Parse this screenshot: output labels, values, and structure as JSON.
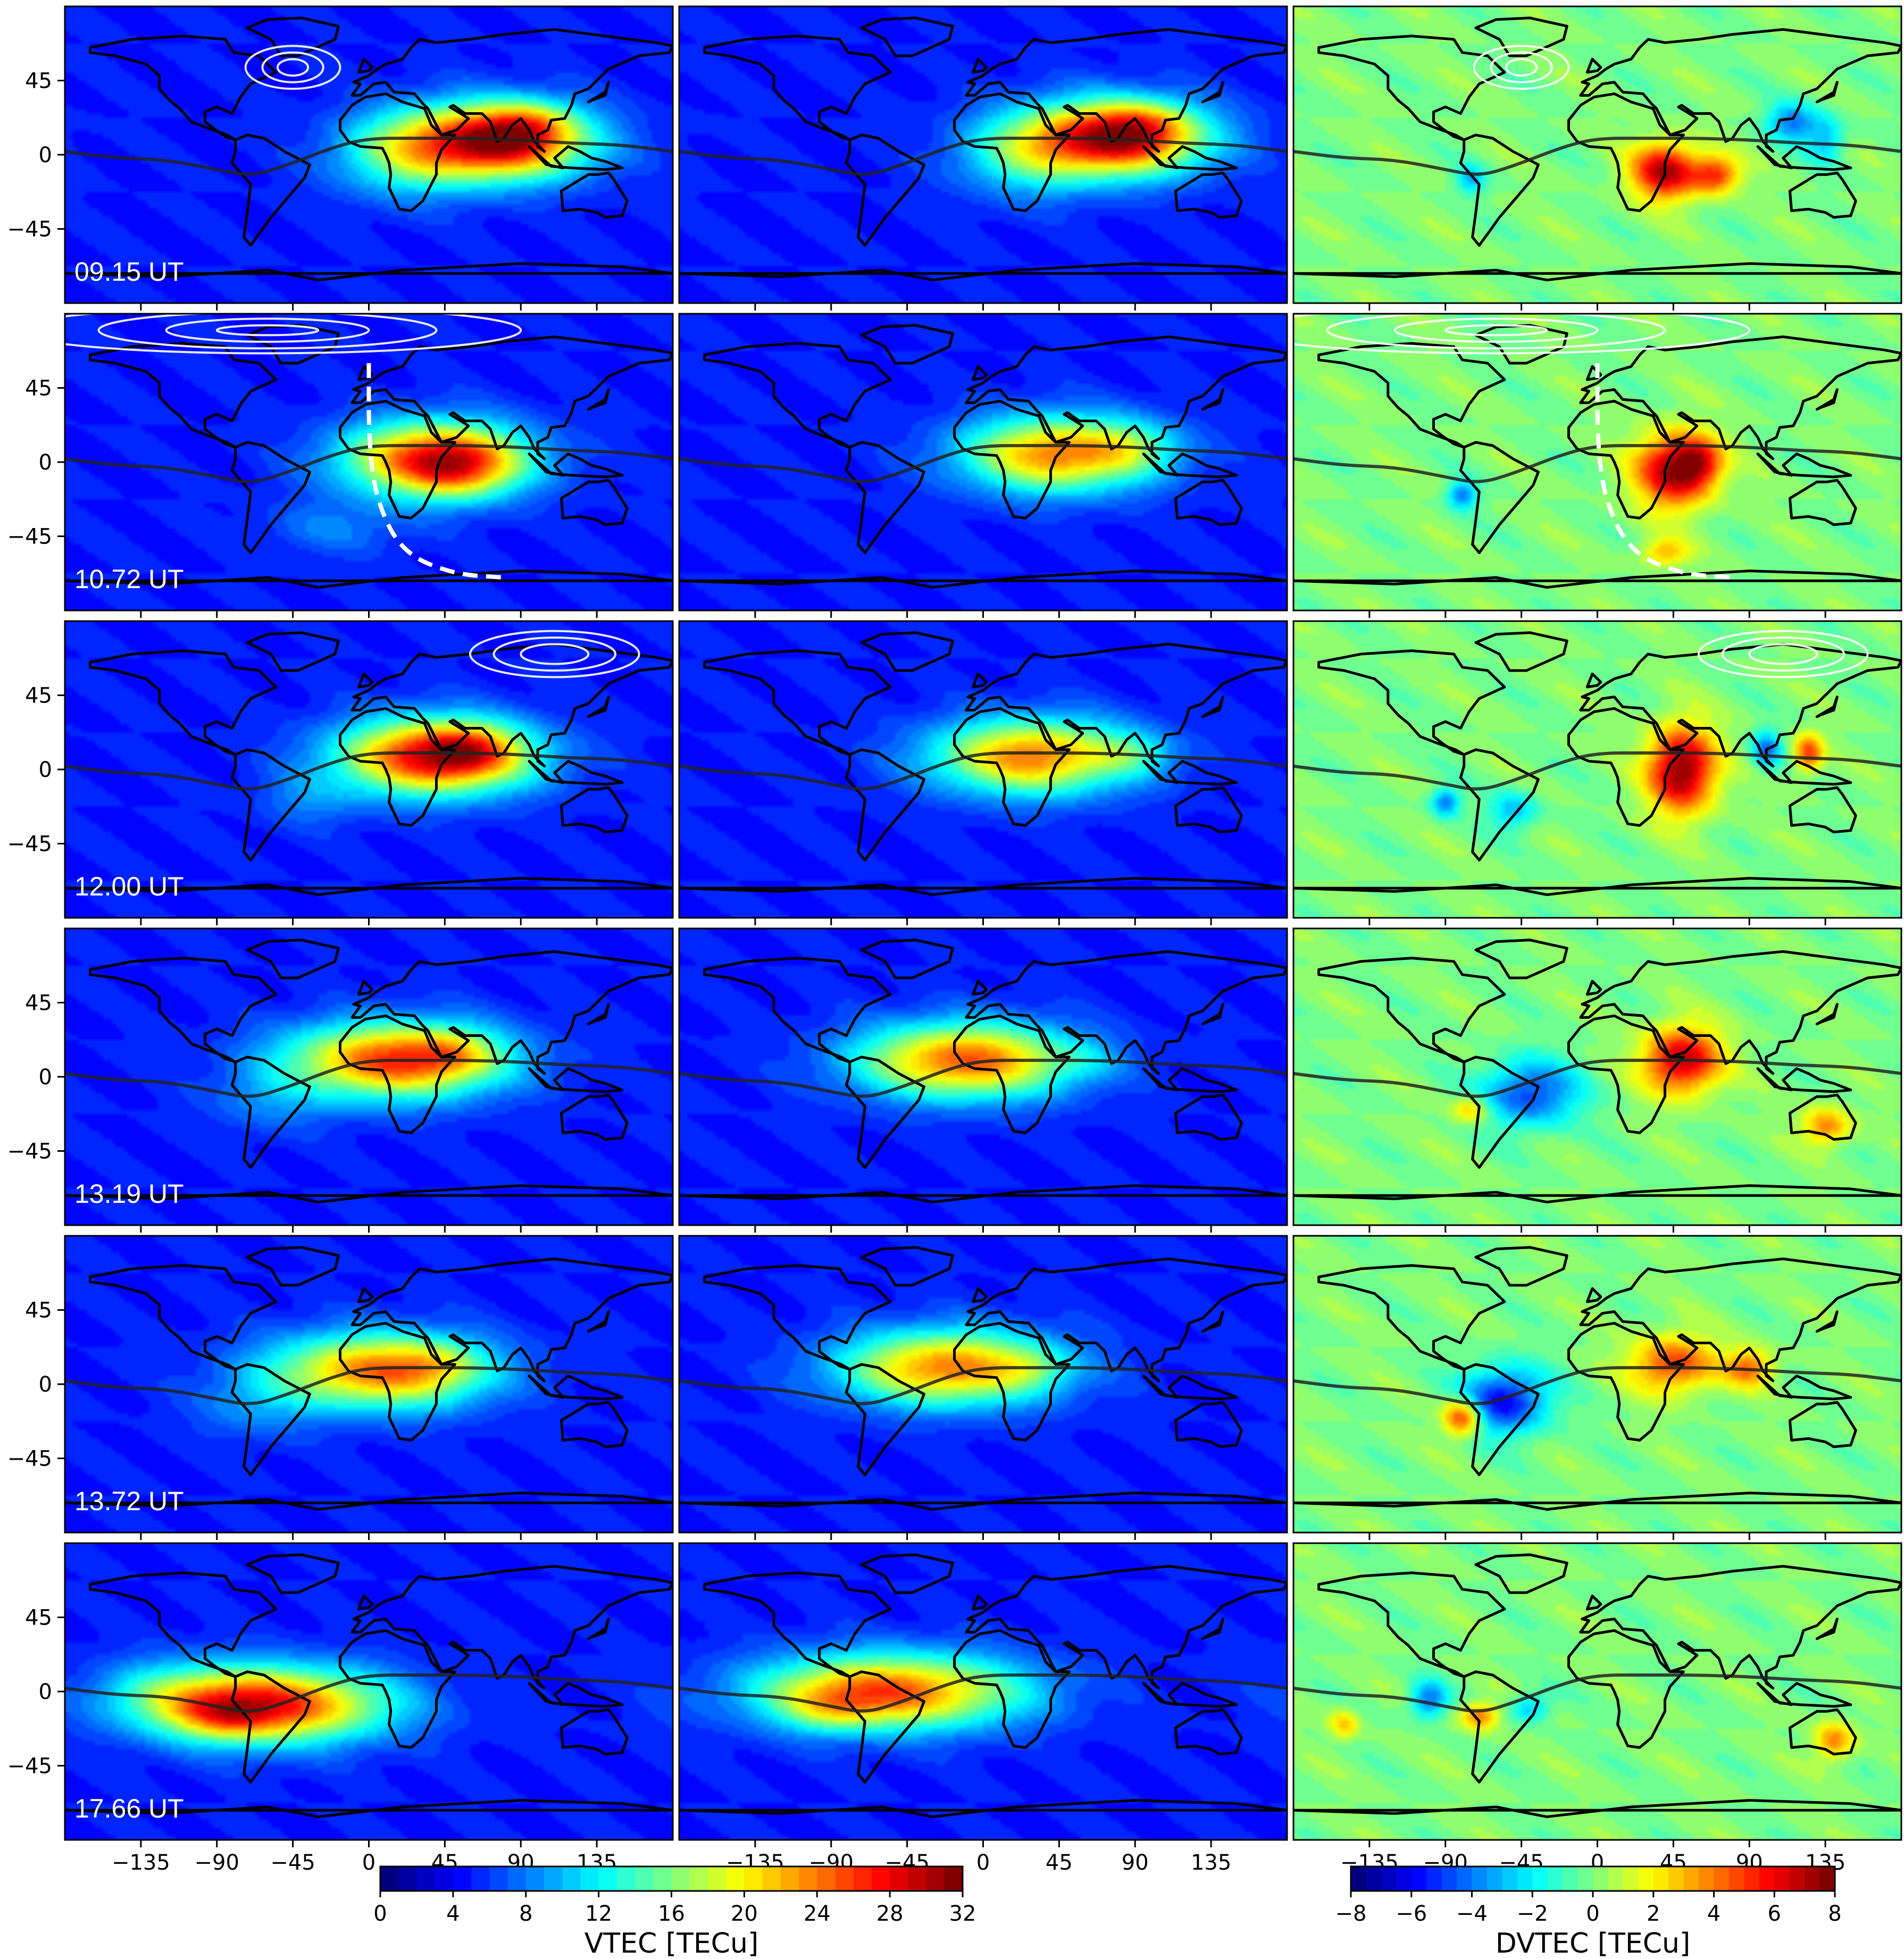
{
  "chart_data": {
    "type": "heatmap",
    "panel_grid": {
      "rows": 6,
      "cols": 3
    },
    "time_labels": [
      "09.15 UT",
      "10.72 UT",
      "12.00 UT",
      "13.19 UT",
      "13.72 UT",
      "17.66 UT"
    ],
    "lat_ticks": [
      45,
      0,
      -45
    ],
    "lat_tick_labels": [
      "45",
      "0",
      "−45"
    ],
    "lon_ticks": [
      -135,
      -90,
      -45,
      0,
      45,
      90,
      135
    ],
    "lon_tick_labels": [
      "−135",
      "−90",
      "−45",
      "0",
      "45",
      "90",
      "135"
    ],
    "xlim": [
      -180,
      180
    ],
    "ylim": [
      -90,
      90
    ],
    "columns": [
      {
        "quantity": "VTEC",
        "colorbar": "vtec"
      },
      {
        "quantity": "VTEC",
        "colorbar": "vtec"
      },
      {
        "quantity": "DVTEC",
        "colorbar": "dvtec"
      }
    ],
    "colorbars": {
      "vtec": {
        "label": "VTEC [TECu]",
        "range": [
          0,
          32
        ],
        "ticks": [
          0,
          4,
          8,
          12,
          16,
          20,
          24,
          28,
          32
        ],
        "tick_labels": [
          "0",
          "4",
          "8",
          "12",
          "16",
          "20",
          "24",
          "28",
          "32"
        ],
        "levels": 32
      },
      "dvtec": {
        "label": "DVTEC [TECu]",
        "range": [
          -8,
          8
        ],
        "ticks": [
          -8,
          -6,
          -4,
          -2,
          0,
          2,
          4,
          6,
          8
        ],
        "tick_labels": [
          "−8",
          "−6",
          "−4",
          "−2",
          "0",
          "2",
          "4",
          "6",
          "8"
        ],
        "levels": 32
      }
    },
    "rows": [
      {
        "ut": "09.15 UT",
        "vtec_a": {
          "base": 5,
          "blobs": [
            [
              75,
              8,
              38,
              16,
              25
            ],
            [
              95,
              18,
              18,
              10,
              6
            ],
            [
              20,
              0,
              30,
              18,
              8
            ]
          ]
        },
        "vtec_b": {
          "base": 5,
          "blobs": [
            [
              78,
              10,
              38,
              16,
              24
            ],
            [
              95,
              18,
              18,
              10,
              5
            ],
            [
              25,
              0,
              30,
              18,
              7
            ]
          ]
        },
        "dvtec": {
          "base": 0,
          "blobs": [
            [
              40,
              -10,
              14,
              12,
              7
            ],
            [
              70,
              -12,
              10,
              8,
              5
            ],
            [
              115,
              20,
              10,
              8,
              -4
            ],
            [
              135,
              10,
              8,
              10,
              -3
            ],
            [
              -75,
              -15,
              6,
              6,
              -3
            ]
          ]
        },
        "contours": {
          "center": [
            -45,
            53
          ],
          "rx": [
            28,
            18,
            9
          ],
          "ry": [
            13,
            9,
            5
          ],
          "dashed_path": null
        }
      },
      {
        "ut": "10.72 UT",
        "vtec_a": {
          "base": 5,
          "blobs": [
            [
              40,
              2,
              38,
              16,
              22
            ],
            [
              55,
              -5,
              20,
              12,
              6
            ],
            [
              -20,
              -40,
              30,
              12,
              3
            ]
          ]
        },
        "vtec_b": {
          "base": 5,
          "blobs": [
            [
              45,
              5,
              40,
              16,
              19
            ],
            [
              90,
              10,
              18,
              10,
              4
            ]
          ]
        },
        "dvtec": {
          "base": 0,
          "blobs": [
            [
              45,
              -5,
              16,
              16,
              7
            ],
            [
              60,
              0,
              10,
              10,
              4
            ],
            [
              -80,
              -20,
              6,
              6,
              -4
            ],
            [
              40,
              -55,
              10,
              6,
              3
            ]
          ]
        },
        "contours": {
          "center": [
            -60,
            80
          ],
          "rx": [
            150,
            100,
            60,
            30
          ],
          "ry": [
            14,
            11,
            7,
            3
          ],
          "dashed_path": [
            [
              0,
              60
            ],
            [
              0,
              10
            ],
            [
              5,
              -25
            ],
            [
              20,
              -55
            ],
            [
              50,
              -68
            ],
            [
              80,
              -70
            ]
          ]
        }
      },
      {
        "ut": "12.00 UT",
        "vtec_a": {
          "base": 5,
          "blobs": [
            [
              40,
              8,
              40,
              16,
              24
            ],
            [
              60,
              12,
              18,
              10,
              6
            ],
            [
              -35,
              -18,
              22,
              12,
              3
            ]
          ]
        },
        "vtec_b": {
          "base": 5,
          "blobs": [
            [
              30,
              8,
              42,
              16,
              19
            ],
            [
              90,
              10,
              15,
              8,
              4
            ]
          ]
        },
        "dvtec": {
          "base": 0,
          "blobs": [
            [
              50,
              0,
              14,
              18,
              8
            ],
            [
              100,
              12,
              6,
              8,
              -4
            ],
            [
              125,
              10,
              6,
              8,
              5
            ],
            [
              -50,
              -25,
              10,
              8,
              -3
            ],
            [
              -90,
              -20,
              6,
              6,
              -4
            ]
          ]
        },
        "contours": {
          "center": [
            110,
            70
          ],
          "rx": [
            50,
            36,
            20
          ],
          "ry": [
            14,
            10,
            6
          ],
          "dashed_path": null
        }
      },
      {
        "ut": "13.19 UT",
        "vtec_a": {
          "base": 5,
          "blobs": [
            [
              15,
              10,
              45,
              16,
              21
            ],
            [
              50,
              15,
              18,
              10,
              5
            ],
            [
              -60,
              -15,
              25,
              14,
              3
            ]
          ]
        },
        "vtec_b": {
          "base": 5,
          "blobs": [
            [
              -10,
              10,
              45,
              16,
              20
            ],
            [
              60,
              10,
              15,
              8,
              2
            ]
          ]
        },
        "dvtec": {
          "base": 0,
          "blobs": [
            [
              50,
              10,
              16,
              14,
              7
            ],
            [
              -40,
              -10,
              20,
              14,
              -5
            ],
            [
              135,
              -30,
              10,
              8,
              4
            ],
            [
              -75,
              -20,
              8,
              6,
              3
            ]
          ]
        },
        "contours": null
      },
      {
        "ut": "13.72 UT",
        "vtec_a": {
          "base": 5,
          "blobs": [
            [
              5,
              8,
              45,
              16,
              19
            ],
            [
              40,
              12,
              18,
              10,
              4
            ],
            [
              -70,
              -15,
              25,
              14,
              3
            ]
          ]
        },
        "vtec_b": {
          "base": 5,
          "blobs": [
            [
              -20,
              10,
              45,
              16,
              19
            ],
            [
              30,
              10,
              15,
              8,
              3
            ]
          ]
        },
        "dvtec": {
          "base": 0,
          "blobs": [
            [
              45,
              12,
              18,
              12,
              5
            ],
            [
              -55,
              -10,
              18,
              14,
              -6
            ],
            [
              -80,
              -20,
              8,
              8,
              6
            ],
            [
              90,
              10,
              10,
              8,
              4
            ]
          ]
        },
        "contours": null
      },
      {
        "ut": "17.66 UT",
        "vtec_a": {
          "base": 5,
          "blobs": [
            [
              -60,
              -8,
              50,
              16,
              22
            ],
            [
              -85,
              -15,
              20,
              10,
              6
            ],
            [
              -120,
              0,
              30,
              14,
              4
            ]
          ]
        },
        "vtec_b": {
          "base": 5,
          "blobs": [
            [
              -55,
              0,
              55,
              16,
              20
            ],
            [
              -90,
              -10,
              20,
              10,
              5
            ]
          ]
        },
        "dvtec": {
          "base": 0,
          "blobs": [
            [
              -100,
              -5,
              8,
              8,
              -4
            ],
            [
              -70,
              -15,
              8,
              6,
              4
            ],
            [
              -40,
              -10,
              8,
              6,
              -3
            ],
            [
              140,
              -30,
              8,
              8,
              4
            ],
            [
              -150,
              -20,
              6,
              6,
              3
            ]
          ]
        },
        "contours": null
      }
    ]
  }
}
